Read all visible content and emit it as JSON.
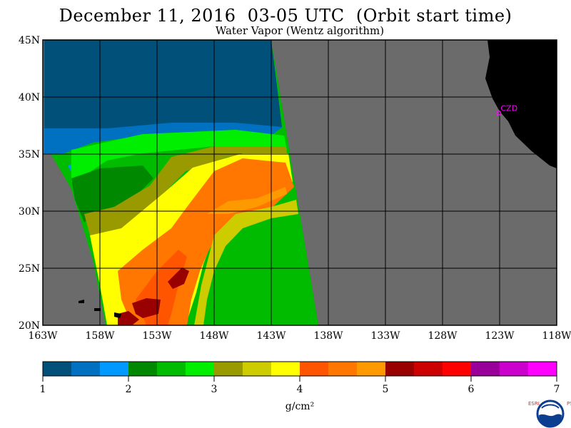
{
  "header": {
    "title": "December 11, 2016  03-05 UTC  (Orbit start time)",
    "subtitle": "Water Vapor (Wentz algorithm)"
  },
  "map": {
    "lat_labels": [
      "45N",
      "40N",
      "35N",
      "30N",
      "25N",
      "20N"
    ],
    "lon_labels": [
      "163W",
      "158W",
      "153W",
      "148W",
      "143W",
      "138W",
      "133W",
      "128W",
      "123W",
      "118W"
    ],
    "lat_range": [
      20,
      45
    ],
    "lon_range": [
      -163,
      -118
    ],
    "station": {
      "label": "CZD",
      "lon": -123.1,
      "lat": 38.6
    },
    "colors": {
      "no_data": "#6b6b6b",
      "land": "#000000",
      "grid": "#000000",
      "station": "#ff00ff"
    }
  },
  "colorbar": {
    "tick_labels": [
      "1",
      "2",
      "3",
      "4",
      "5",
      "6",
      "7"
    ],
    "units": "g/cm²",
    "colors": [
      "#00507a",
      "#0070c0",
      "#0099ff",
      "#008800",
      "#00bb00",
      "#00ee00",
      "#999900",
      "#cccc00",
      "#ffff00",
      "#ff5500",
      "#ff7700",
      "#ff9900",
      "#990000",
      "#cc0000",
      "#ff0000",
      "#990099",
      "#cc00cc",
      "#ff00ff"
    ]
  },
  "logo": {
    "left_letters": "ESRL",
    "right_letters": "PSD",
    "name": "NOAA"
  }
}
